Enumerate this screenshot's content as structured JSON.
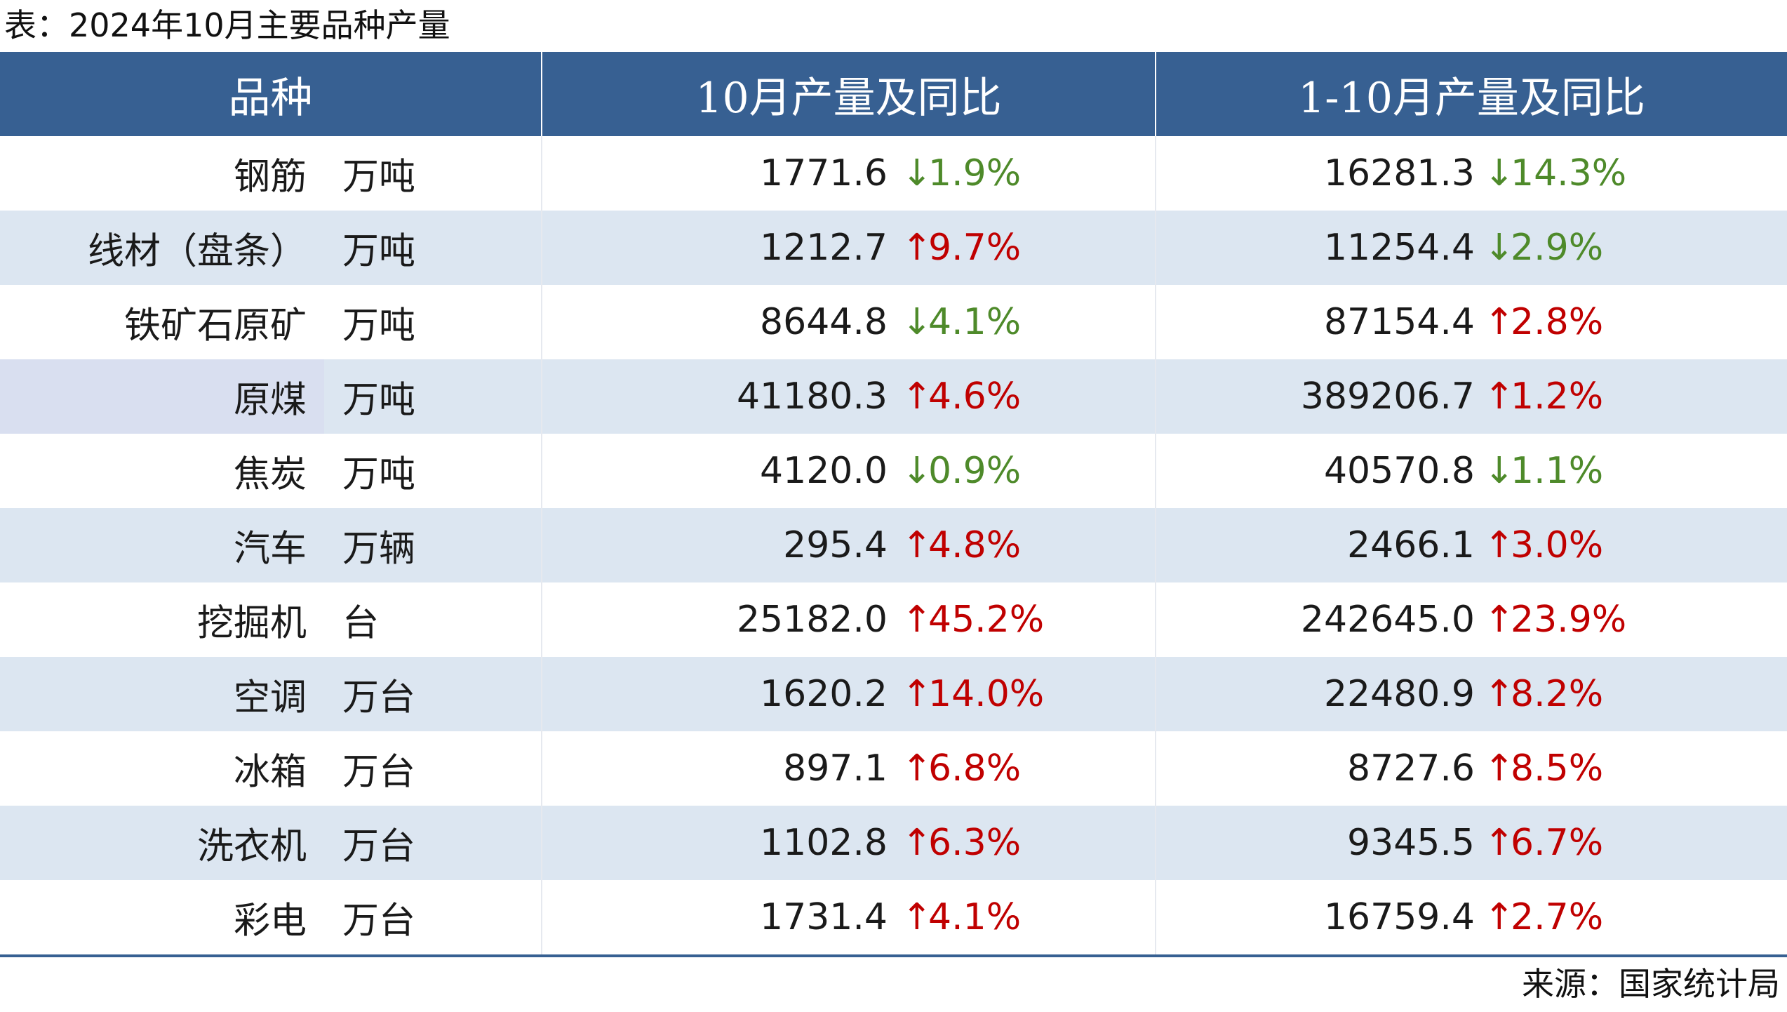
{
  "caption": "表：2024年10月主要品种产量",
  "headers": [
    "品种",
    "10月产量及同比",
    "1-10月产量及同比"
  ],
  "rows": [
    {
      "name": "钢筋",
      "unit": "万吨",
      "oct": {
        "value": "1771.6",
        "dir": "down",
        "arrow": "↓",
        "pct": "1.9%"
      },
      "ytd": {
        "value": "16281.3",
        "dir": "down",
        "arrow": "↓",
        "pct": "14.3%"
      }
    },
    {
      "name": "线材（盘条）",
      "unit": "万吨",
      "oct": {
        "value": "1212.7",
        "dir": "up",
        "arrow": "↑",
        "pct": "9.7%"
      },
      "ytd": {
        "value": "11254.4",
        "dir": "down",
        "arrow": "↓",
        "pct": "2.9%"
      }
    },
    {
      "name": "铁矿石原矿",
      "unit": "万吨",
      "oct": {
        "value": "8644.8",
        "dir": "down",
        "arrow": "↓",
        "pct": "4.1%"
      },
      "ytd": {
        "value": "87154.4",
        "dir": "up",
        "arrow": "↑",
        "pct": "2.8%"
      }
    },
    {
      "name": "原煤",
      "unit": "万吨",
      "oct": {
        "value": "41180.3",
        "dir": "up",
        "arrow": "↑",
        "pct": "4.6%"
      },
      "ytd": {
        "value": "389206.7",
        "dir": "up",
        "arrow": "↑",
        "pct": "1.2%"
      }
    },
    {
      "name": "焦炭",
      "unit": "万吨",
      "oct": {
        "value": "4120.0",
        "dir": "down",
        "arrow": "↓",
        "pct": "0.9%"
      },
      "ytd": {
        "value": "40570.8",
        "dir": "down",
        "arrow": "↓",
        "pct": "1.1%"
      }
    },
    {
      "name": "汽车",
      "unit": "万辆",
      "oct": {
        "value": "295.4",
        "dir": "up",
        "arrow": "↑",
        "pct": "4.8%"
      },
      "ytd": {
        "value": "2466.1",
        "dir": "up",
        "arrow": "↑",
        "pct": "3.0%"
      }
    },
    {
      "name": "挖掘机",
      "unit": "台",
      "oct": {
        "value": "25182.0",
        "dir": "up",
        "arrow": "↑",
        "pct": "45.2%"
      },
      "ytd": {
        "value": "242645.0",
        "dir": "up",
        "arrow": "↑",
        "pct": "23.9%"
      }
    },
    {
      "name": "空调",
      "unit": "万台",
      "oct": {
        "value": "1620.2",
        "dir": "up",
        "arrow": "↑",
        "pct": "14.0%"
      },
      "ytd": {
        "value": "22480.9",
        "dir": "up",
        "arrow": "↑",
        "pct": "8.2%"
      }
    },
    {
      "name": "冰箱",
      "unit": "万台",
      "oct": {
        "value": "897.1",
        "dir": "up",
        "arrow": "↑",
        "pct": "6.8%"
      },
      "ytd": {
        "value": "8727.6",
        "dir": "up",
        "arrow": "↑",
        "pct": "8.5%"
      }
    },
    {
      "name": "洗衣机",
      "unit": "万台",
      "oct": {
        "value": "1102.8",
        "dir": "up",
        "arrow": "↑",
        "pct": "6.3%"
      },
      "ytd": {
        "value": "9345.5",
        "dir": "up",
        "arrow": "↑",
        "pct": "6.7%"
      }
    },
    {
      "name": "彩电",
      "unit": "万台",
      "oct": {
        "value": "1731.4",
        "dir": "up",
        "arrow": "↑",
        "pct": "4.1%"
      },
      "ytd": {
        "value": "16759.4",
        "dir": "up",
        "arrow": "↑",
        "pct": "2.7%"
      }
    }
  ],
  "source": "来源：国家统计局",
  "colors": {
    "header_bg": "#376092",
    "header_text": "#ffffff",
    "row_alt": "#dce6f1",
    "up": "#c00000",
    "down": "#4e8a2a"
  }
}
